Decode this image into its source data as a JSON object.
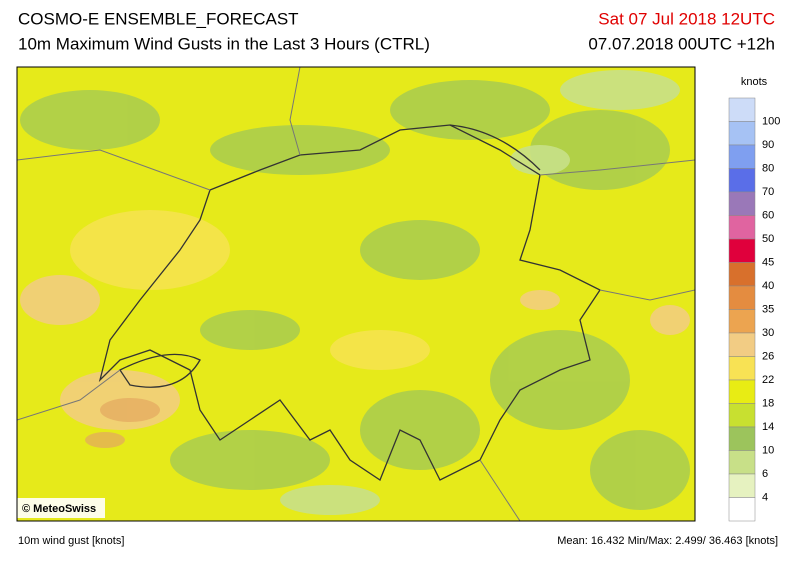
{
  "header": {
    "title": "COSMO-E ENSEMBLE_FORECAST",
    "subtitle": "10m Maximum Wind Gusts in the Last 3 Hours (CTRL)",
    "date": "Sat 07 Jul 2018 12UTC",
    "run": "07.07.2018 00UTC +12h"
  },
  "legend": {
    "unit": "knots",
    "labels": [
      100,
      90,
      80,
      70,
      60,
      50,
      45,
      40,
      35,
      30,
      26,
      22,
      18,
      14,
      10,
      6,
      4
    ],
    "colors": [
      "#cddcf8",
      "#a6c2f4",
      "#7f9ff0",
      "#5a6ee8",
      "#9a78b8",
      "#e064a0",
      "#e0003c",
      "#d8702c",
      "#e48c40",
      "#eca450",
      "#f2cc84",
      "#f8e254",
      "#e8ec14",
      "#c8e030",
      "#9cc45c",
      "#c8e088",
      "#e6f2c0",
      "#ffffff"
    ]
  },
  "map": {
    "credit": "© MeteoSwiss"
  },
  "footer": {
    "left": "10m wind gust [knots]",
    "right": "Mean: 16.432 Min/Max:  2.499/ 36.463 [knots]"
  }
}
